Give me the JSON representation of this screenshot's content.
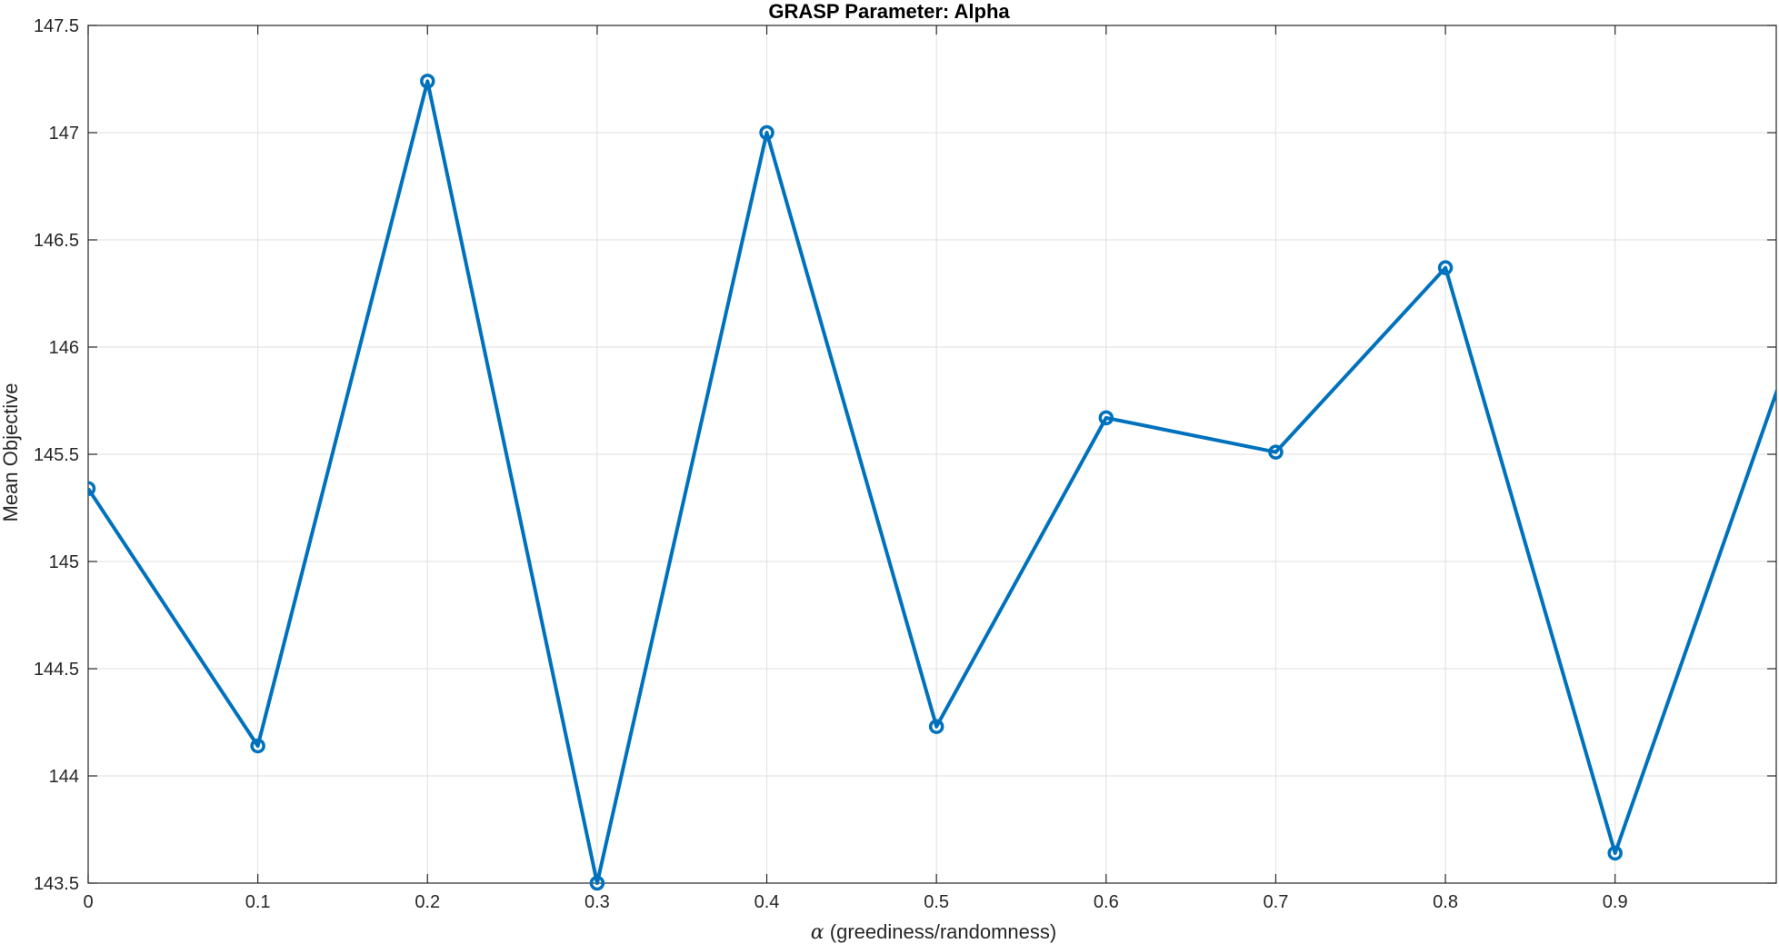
{
  "chart_data": {
    "type": "line",
    "title": "GRASP Parameter: Alpha",
    "xlabel_symbol": "α",
    "xlabel_text": " (greediness/randomness)",
    "ylabel": "Mean Objective",
    "xlim": [
      0,
      0.995
    ],
    "ylim": [
      143.5,
      147.5
    ],
    "xticks": [
      0,
      0.1,
      0.2,
      0.3,
      0.4,
      0.5,
      0.6,
      0.7,
      0.8,
      0.9
    ],
    "xtick_labels": [
      "0",
      "0.1",
      "0.2",
      "0.3",
      "0.4",
      "0.5",
      "0.6",
      "0.7",
      "0.8",
      "0.9"
    ],
    "yticks": [
      143.5,
      144,
      144.5,
      145,
      145.5,
      146,
      146.5,
      147,
      147.5
    ],
    "ytick_labels": [
      "143.5",
      "144",
      "144.5",
      "145",
      "145.5",
      "146",
      "146.5",
      "147",
      "147.5"
    ],
    "grid": true,
    "series": [
      {
        "color": "#0072BD",
        "marker": "circle",
        "x": [
          0,
          0.1,
          0.2,
          0.3,
          0.4,
          0.5,
          0.6,
          0.7,
          0.8,
          0.9,
          1.0
        ],
        "y": [
          145.34,
          144.14,
          147.24,
          143.5,
          147.0,
          144.23,
          145.67,
          145.51,
          146.37,
          143.64,
          145.9
        ]
      }
    ]
  }
}
